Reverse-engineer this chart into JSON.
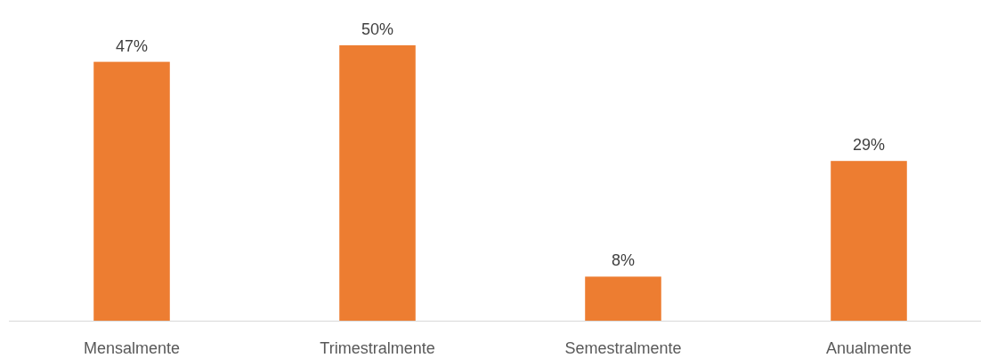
{
  "chart_data": {
    "type": "bar",
    "categories": [
      "Mensalmente",
      "Trimestralmente",
      "Semestralmente",
      "Anualmente"
    ],
    "values": [
      47,
      50,
      8,
      29
    ],
    "color": "#ed7d31",
    "value_labels": [
      "47%",
      "50%",
      "8%",
      "29%"
    ]
  }
}
